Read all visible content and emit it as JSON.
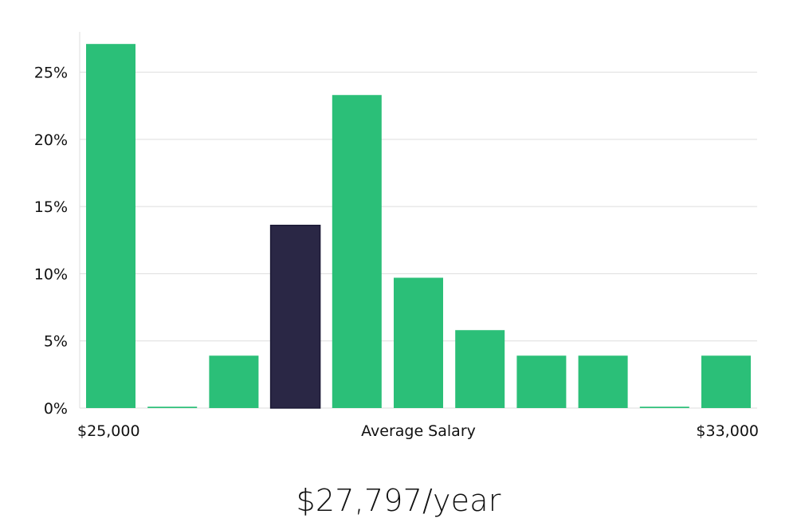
{
  "chart_data": {
    "type": "bar",
    "title": "",
    "xlabel": "Average Salary",
    "ylabel": "",
    "x_min_label": "$25,000",
    "x_max_label": "$33,000",
    "ylim": [
      0,
      28
    ],
    "y_ticks": [
      0,
      5,
      10,
      15,
      20,
      25
    ],
    "y_tick_labels": [
      "0%",
      "5%",
      "10%",
      "15%",
      "20%",
      "25%"
    ],
    "grid": true,
    "values": [
      27.1,
      0.1,
      3.9,
      13.6,
      23.3,
      9.7,
      5.8,
      3.9,
      3.9,
      0.1,
      3.9
    ],
    "highlight_index": 3,
    "colors": {
      "bar": "#2bbf78",
      "highlight": "#2a2745",
      "grid": "#dddddd",
      "axis": "#dddddd"
    }
  },
  "salary": {
    "headline": "$27,797/year"
  }
}
